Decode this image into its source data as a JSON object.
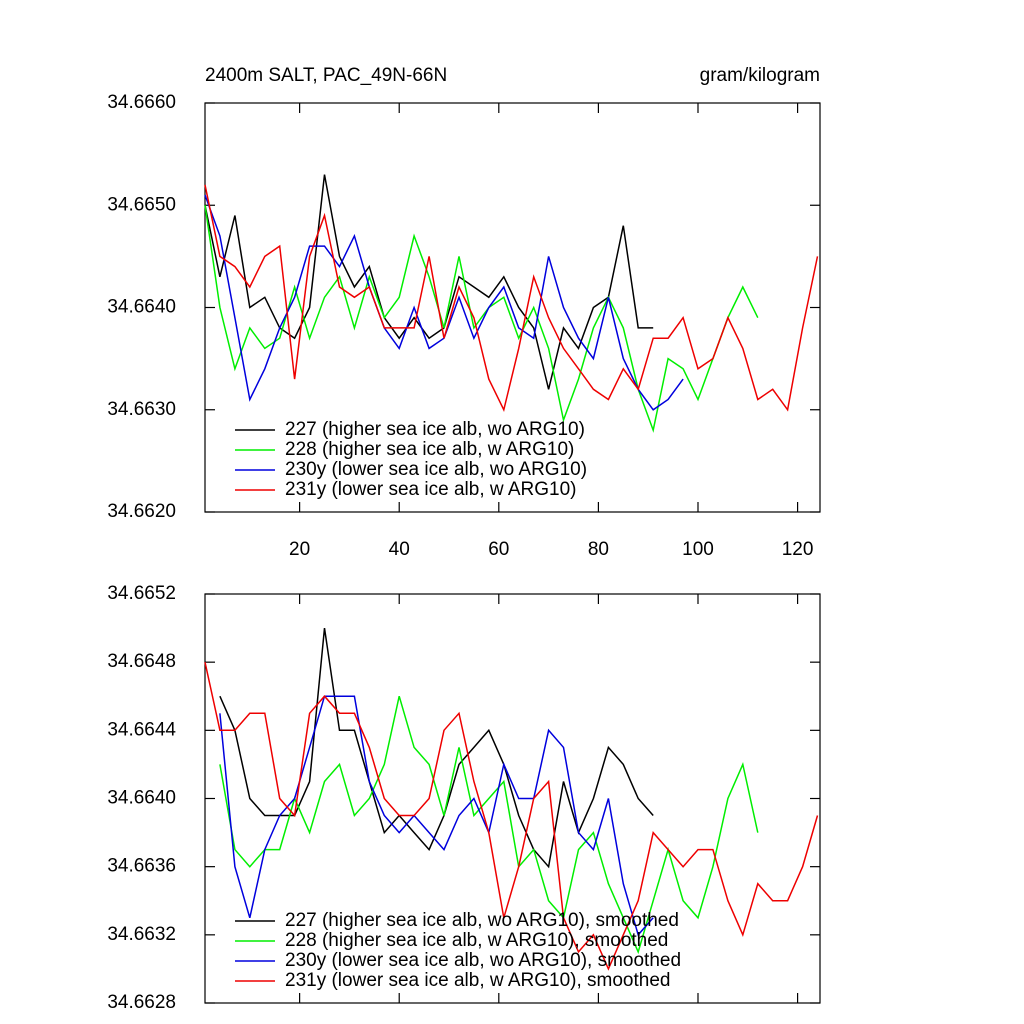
{
  "chart_data": [
    {
      "type": "line",
      "title": "2400m SALT, PAC_49N-66N",
      "subtitle": "gram/kilogram",
      "x": [
        1,
        4,
        7,
        10,
        13,
        16,
        19,
        22,
        25,
        28,
        31,
        34,
        37,
        40,
        43,
        46,
        49,
        52,
        55,
        58,
        61,
        64,
        67,
        70,
        73,
        76,
        79,
        82,
        85,
        88,
        91,
        94,
        97,
        100,
        103,
        106,
        109,
        112,
        115,
        118,
        121,
        124
      ],
      "xlim": [
        1,
        124.5
      ],
      "xticks": [
        20,
        40,
        60,
        80,
        100,
        120
      ],
      "ylim": [
        34.662,
        34.666
      ],
      "yticks": [
        {
          "value": 34.662,
          "label": "34.6620"
        },
        {
          "value": 34.663,
          "label": "34.6630"
        },
        {
          "value": 34.664,
          "label": "34.6640"
        },
        {
          "value": 34.665,
          "label": "34.6650"
        },
        {
          "value": 34.666,
          "label": "34.6660"
        }
      ],
      "legend": "lower left",
      "series": [
        {
          "name": "227 (higher sea ice alb, wo ARG10)",
          "color": "#000000",
          "values": [
            34.665,
            34.6643,
            34.6649,
            34.664,
            34.6641,
            34.6638,
            34.6637,
            34.664,
            34.6653,
            34.6645,
            34.6642,
            34.6644,
            34.6639,
            34.6637,
            34.6639,
            34.6637,
            34.6638,
            34.6643,
            34.6642,
            34.6641,
            34.6643,
            34.664,
            34.6638,
            34.6632,
            34.6638,
            34.6636,
            34.664,
            34.6641,
            34.6648,
            34.6638,
            34.6638,
            null,
            null,
            null,
            null,
            null,
            null,
            null,
            null,
            null,
            null,
            null
          ]
        },
        {
          "name": "228 (higher sea ice alb, w ARG10)",
          "color": "#00ee00",
          "values": [
            34.665,
            34.664,
            34.6634,
            34.6638,
            34.6636,
            34.6637,
            34.6642,
            34.6637,
            34.6641,
            34.6643,
            34.6638,
            34.6643,
            34.6639,
            34.6641,
            34.6647,
            34.6643,
            34.6638,
            34.6645,
            34.6638,
            34.664,
            34.6641,
            34.6637,
            34.664,
            34.6636,
            34.6629,
            34.6633,
            34.6638,
            34.6641,
            34.6638,
            34.6632,
            34.6628,
            34.6635,
            34.6634,
            34.6631,
            34.6635,
            34.6639,
            34.6642,
            34.6639,
            null,
            null,
            null,
            null
          ]
        },
        {
          "name": "230y (lower sea ice alb, wo ARG10)",
          "color": "#0000dd",
          "values": [
            34.6651,
            34.6647,
            34.6639,
            34.6631,
            34.6634,
            34.6638,
            34.6641,
            34.6646,
            34.6646,
            34.6644,
            34.6647,
            34.6642,
            34.6638,
            34.6636,
            34.664,
            34.6636,
            34.6637,
            34.6641,
            34.6637,
            34.664,
            34.6642,
            34.6638,
            34.6637,
            34.6645,
            34.664,
            34.6637,
            34.6635,
            34.6641,
            34.6635,
            34.6632,
            34.663,
            34.6631,
            34.6633,
            null,
            null,
            null,
            null,
            null,
            null,
            null,
            null,
            null
          ]
        },
        {
          "name": "231y (lower sea ice alb, w ARG10)",
          "color": "#ee0000",
          "values": [
            34.6652,
            34.6645,
            34.6644,
            34.6642,
            34.6645,
            34.6646,
            34.6633,
            34.6645,
            34.6649,
            34.6642,
            34.6641,
            34.6642,
            34.6638,
            34.6638,
            34.6638,
            34.6645,
            34.6637,
            34.6642,
            34.6639,
            34.6633,
            34.663,
            34.6636,
            34.6643,
            34.6639,
            34.6636,
            34.6634,
            34.6632,
            34.6631,
            34.6634,
            34.6632,
            34.6637,
            34.6637,
            34.6639,
            34.6634,
            34.6635,
            34.6639,
            34.6636,
            34.6631,
            34.6632,
            34.663,
            34.6638,
            34.6645
          ]
        }
      ]
    },
    {
      "type": "line",
      "x": [
        1,
        4,
        7,
        10,
        13,
        16,
        19,
        22,
        25,
        28,
        31,
        34,
        37,
        40,
        43,
        46,
        49,
        52,
        55,
        58,
        61,
        64,
        67,
        70,
        73,
        76,
        79,
        82,
        85,
        88,
        91,
        94,
        97,
        100,
        103,
        106,
        109,
        112,
        115,
        118,
        121,
        124
      ],
      "xlim": [
        1,
        124.5
      ],
      "ylim": [
        34.6628,
        34.6652
      ],
      "yticks": [
        {
          "value": 34.6628,
          "label": "34.6628"
        },
        {
          "value": 34.6632,
          "label": "34.6632"
        },
        {
          "value": 34.6636,
          "label": "34.6636"
        },
        {
          "value": 34.664,
          "label": "34.6640"
        },
        {
          "value": 34.6644,
          "label": "34.6644"
        },
        {
          "value": 34.6648,
          "label": "34.6648"
        },
        {
          "value": 34.6652,
          "label": "34.6652"
        }
      ],
      "legend": "lower left",
      "series": [
        {
          "name": "227 (higher sea ice alb, wo ARG10), smoothed",
          "color": "#000000",
          "values": [
            null,
            34.6646,
            34.6644,
            34.664,
            34.6639,
            34.6639,
            34.6639,
            34.6641,
            34.665,
            34.6644,
            34.6644,
            34.6641,
            34.6638,
            34.6639,
            34.6638,
            34.6637,
            34.6639,
            34.6642,
            34.6643,
            34.6644,
            34.6642,
            34.6639,
            34.6637,
            34.6636,
            34.6641,
            34.6638,
            34.664,
            34.6643,
            34.6642,
            34.664,
            34.6639,
            null,
            null,
            null,
            null,
            null,
            null,
            null,
            null,
            null,
            null,
            null
          ]
        },
        {
          "name": "228 (higher sea ice alb, w ARG10), smoothed",
          "color": "#00ee00",
          "values": [
            null,
            34.6642,
            34.6637,
            34.6636,
            34.6637,
            34.6637,
            34.664,
            34.6638,
            34.6641,
            34.6642,
            34.6639,
            34.664,
            34.6642,
            34.6646,
            34.6643,
            34.6642,
            34.6639,
            34.6643,
            34.6639,
            34.664,
            34.6641,
            34.6636,
            34.6637,
            34.6634,
            34.6633,
            34.6637,
            34.6638,
            34.6635,
            34.6633,
            34.6631,
            34.6634,
            34.6637,
            34.6634,
            34.6633,
            34.6636,
            34.664,
            34.6642,
            34.6638,
            null,
            null,
            null,
            null
          ]
        },
        {
          "name": "230y (lower sea ice alb, wo ARG10), smoothed",
          "color": "#0000dd",
          "values": [
            null,
            34.6645,
            34.6636,
            34.6633,
            34.6637,
            34.6639,
            34.664,
            34.6643,
            34.6646,
            34.6646,
            34.6646,
            34.6641,
            34.6639,
            34.6638,
            34.6639,
            34.6638,
            34.6637,
            34.6639,
            34.664,
            34.6638,
            34.6642,
            34.664,
            34.664,
            34.6644,
            34.6643,
            34.6638,
            34.6637,
            34.664,
            34.6635,
            34.6632,
            34.6633,
            null,
            null,
            null,
            null,
            null,
            null,
            null,
            null,
            null,
            null,
            null
          ]
        },
        {
          "name": "231y (lower sea ice alb, w ARG10), smoothed",
          "color": "#ee0000",
          "values": [
            34.6648,
            34.6644,
            34.6644,
            34.6645,
            34.6645,
            34.664,
            34.6639,
            34.6645,
            34.6646,
            34.6645,
            34.6645,
            34.6643,
            34.664,
            34.6639,
            34.6639,
            34.664,
            34.6644,
            34.6645,
            34.6641,
            34.6638,
            34.6633,
            34.6636,
            34.664,
            34.6641,
            34.6633,
            34.6631,
            34.6632,
            34.663,
            34.6632,
            34.6634,
            34.6638,
            34.6637,
            34.6636,
            34.6637,
            34.6637,
            34.6634,
            34.6632,
            34.6635,
            34.6634,
            34.6634,
            34.6636,
            34.6639
          ]
        }
      ]
    }
  ]
}
